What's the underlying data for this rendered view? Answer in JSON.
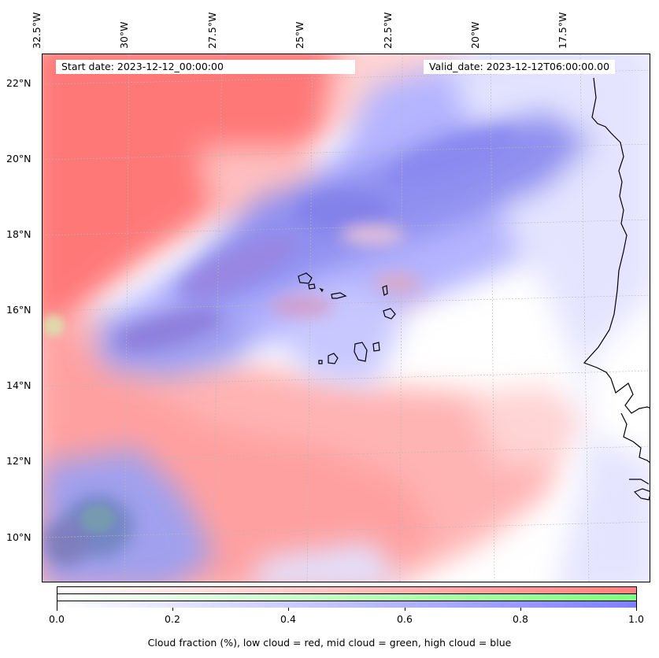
{
  "map": {
    "start_date": "Start date: 2023-12-12_00:00:00",
    "valid_date": "Valid_date: 2023-12-12T06:00:00.00",
    "lon_labels": [
      "32.5°W",
      "30°W",
      "27.5°W",
      "25°W",
      "22.5°W",
      "20°W",
      "17.5°W"
    ],
    "lat_labels": [
      "22°N",
      "20°N",
      "18°N",
      "16°N",
      "14°N",
      "12°N",
      "10°N"
    ],
    "colors": {
      "low_cloud": "#ff7f7f",
      "mid_cloud": "#7fff7f",
      "high_cloud": "#7f7fff",
      "coastline": "#000000"
    }
  },
  "colorbar": {
    "ticks": [
      "0.0",
      "0.2",
      "0.4",
      "0.6",
      "0.8",
      "1.0"
    ],
    "label": "Cloud fraction (%), low cloud = red, mid cloud = green, high cloud = blue"
  }
}
